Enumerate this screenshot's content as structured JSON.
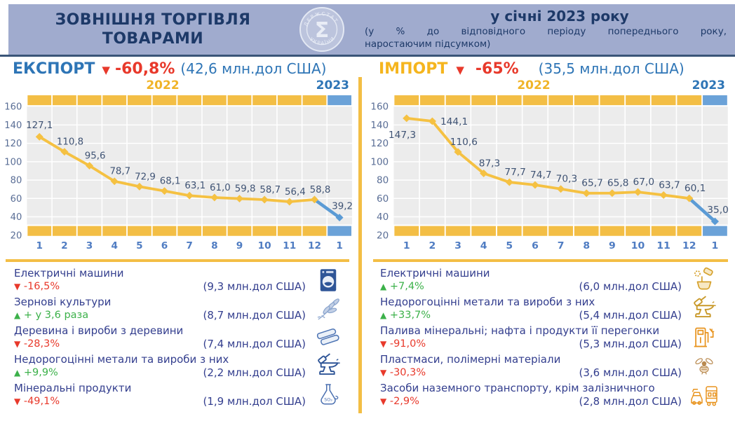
{
  "header": {
    "title_line1": "ЗОВНІШНЯ ТОРГІВЛЯ",
    "title_line2": "ТОВАРАМИ",
    "period_title": "у січні 2023 року",
    "period_subtitle_line1": "(у % до відповідного періоду попереднього року,",
    "period_subtitle_line2": "наростаючим підсумком)",
    "logo": {
      "symbol": "Σ",
      "text_top": "ДЕРЖСТАТ",
      "text_bottom": "УКРАЇНИ"
    }
  },
  "export": {
    "label": "ЕКСПОРТ",
    "arrow": "▼",
    "change": "-60,8%",
    "amount": "(42,6 млн.дол США)",
    "items": [
      {
        "name": "Електричні машини",
        "direction": "down",
        "change": "-16,5%",
        "amount": "(9,3 млн.дол США)",
        "icon": "washing-machine"
      },
      {
        "name": "Зернові культури",
        "direction": "up",
        "change": "+ у 3,6 раза",
        "amount": "(8,7 млн.дол США)",
        "icon": "wheat"
      },
      {
        "name": "Деревина і вироби з деревини",
        "direction": "down",
        "change": "-28,3%",
        "amount": "(7,4 млн.дол США)",
        "icon": "logs"
      },
      {
        "name": "Недорогоцінні метали та вироби з них",
        "direction": "up",
        "change": "+9,9%",
        "amount": "(2,2 млн.дол США)",
        "icon": "anvil-blue"
      },
      {
        "name": "Мінеральні продукти",
        "direction": "down",
        "change": "-49,1%",
        "amount": "(1,9 млн.дол США)",
        "icon": "flask"
      }
    ]
  },
  "import": {
    "label": "ІМПОРТ",
    "arrow": "▼",
    "change": "-65%",
    "amount": "(35,5 млн.дол США)",
    "items": [
      {
        "name": "Електричні машини",
        "direction": "up",
        "change": "+7,4%",
        "amount": "(6,0 млн.дол США)",
        "icon": "mixer"
      },
      {
        "name": "Недорогоцінні метали та вироби з них",
        "direction": "up",
        "change": "+33,7%",
        "amount": "(5,4 млн.дол США)",
        "icon": "anvil-gold"
      },
      {
        "name": "Палива мінеральні; нафта і продукти її перегонки",
        "direction": "down",
        "change": "-91,0%",
        "amount": "(5,3 млн.дол США)",
        "icon": "fuel-pump"
      },
      {
        "name": "Пластмаси, полімерні матеріали",
        "direction": "down",
        "change": "-30,3%",
        "amount": "(3,6 млн.дол США)",
        "icon": "bee"
      },
      {
        "name": "Засоби наземного транспорту, крім залізничного",
        "direction": "down",
        "change": "-2,9%",
        "amount": "(2,8 млн.дол США)",
        "icon": "vehicles"
      }
    ]
  },
  "chart_data": [
    {
      "type": "line",
      "title": "ЕКСПОРТ",
      "year_labels": [
        "2022",
        "2023"
      ],
      "x": [
        "1",
        "2",
        "3",
        "4",
        "5",
        "6",
        "7",
        "8",
        "9",
        "10",
        "11",
        "12",
        "1"
      ],
      "series": [
        {
          "name": "2022",
          "color": "#F5C142",
          "values": [
            127.1,
            110.8,
            95.6,
            78.7,
            72.9,
            68.1,
            63.1,
            61.0,
            59.8,
            58.7,
            56.4,
            58.8
          ]
        },
        {
          "name": "2023",
          "color": "#5B9BD5",
          "values": [
            39.2
          ]
        }
      ],
      "point_labels": [
        "127,1",
        "110,8",
        "95,6",
        "78,7",
        "72,9",
        "68,1",
        "63,1",
        "61,0",
        "59,8",
        "58,7",
        "56,4",
        "58,8",
        "39,2"
      ],
      "ylim": [
        20,
        160
      ],
      "yticks": [
        160,
        140,
        120,
        100,
        80,
        60,
        40,
        20
      ],
      "grid": true,
      "legend": "none",
      "label_offsets": {
        "0": [
          0,
          -12
        ],
        "12": [
          4,
          -12
        ]
      }
    },
    {
      "type": "line",
      "title": "ІМПОРТ",
      "year_labels": [
        "2022",
        "2023"
      ],
      "x": [
        "1",
        "2",
        "3",
        "4",
        "5",
        "6",
        "7",
        "8",
        "9",
        "10",
        "11",
        "12",
        "1"
      ],
      "series": [
        {
          "name": "2022",
          "color": "#F5C142",
          "values": [
            147.3,
            144.1,
            110.6,
            87.3,
            77.7,
            74.7,
            70.3,
            65.7,
            65.8,
            67.0,
            63.7,
            60.1
          ]
        },
        {
          "name": "2023",
          "color": "#5B9BD5",
          "values": [
            35.0
          ]
        }
      ],
      "point_labels": [
        "147,3",
        "144,1",
        "110,6",
        "87,3",
        "77,7",
        "74,7",
        "70,3",
        "65,7",
        "65,8",
        "67,0",
        "63,7",
        "60,1",
        "35,0"
      ],
      "ylim": [
        20,
        160
      ],
      "yticks": [
        160,
        140,
        120,
        100,
        80,
        60,
        40,
        20
      ],
      "grid": true,
      "legend": "none",
      "label_offsets": {
        "0": [
          -6,
          28
        ],
        "1": [
          30,
          5
        ],
        "12": [
          4,
          -12
        ]
      }
    }
  ]
}
